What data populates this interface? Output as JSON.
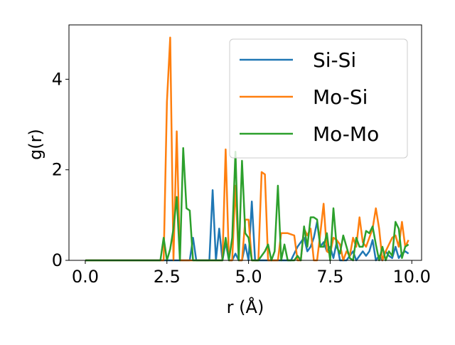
{
  "chart_data": {
    "type": "line",
    "title": "",
    "xlabel": "r (Å)",
    "ylabel": "g(r)",
    "xlim": [
      -0.5,
      10.3
    ],
    "ylim": [
      0,
      5.2
    ],
    "xticks": [
      0.0,
      2.5,
      5.0,
      7.5,
      10.0
    ],
    "xtick_labels": [
      "0.0",
      "2.5",
      "5.0",
      "7.5",
      "10.0"
    ],
    "yticks": [
      0,
      2,
      4
    ],
    "ytick_labels": [
      "0",
      "2",
      "4"
    ],
    "grid": false,
    "legend_position": "top-right",
    "series": [
      {
        "name": "Si-Si",
        "color": "#1f77b4",
        "x": [
          0.0,
          2.2,
          3.1,
          3.2,
          3.3,
          3.4,
          3.6,
          3.8,
          3.9,
          4.0,
          4.1,
          4.2,
          4.3,
          4.4,
          4.5,
          4.6,
          4.7,
          4.8,
          4.9,
          5.0,
          5.1,
          5.2,
          5.4,
          5.6,
          5.8,
          6.0,
          6.3,
          6.5,
          6.7,
          6.8,
          6.9,
          7.0,
          7.1,
          7.2,
          7.3,
          7.4,
          7.5,
          7.6,
          7.7,
          7.8,
          7.9,
          8.0,
          8.1,
          8.2,
          8.3,
          8.4,
          8.5,
          8.6,
          8.7,
          8.8,
          8.9,
          9.0,
          9.1,
          9.2,
          9.3,
          9.4,
          9.5,
          9.6,
          9.7,
          9.8,
          9.9
        ],
        "y": [
          0.0,
          0.0,
          0.0,
          0.0,
          0.5,
          0.0,
          0.0,
          0.0,
          1.55,
          0.0,
          0.7,
          0.0,
          0.4,
          0.0,
          0.0,
          0.15,
          0.0,
          0.0,
          0.35,
          0.0,
          1.3,
          0.0,
          0.0,
          0.0,
          0.0,
          0.0,
          0.0,
          0.3,
          0.5,
          0.2,
          0.3,
          0.5,
          0.85,
          0.3,
          0.4,
          0.2,
          0.3,
          0.05,
          0.4,
          0.0,
          0.0,
          0.0,
          0.1,
          0.2,
          0.0,
          0.1,
          0.2,
          0.1,
          0.2,
          0.45,
          0.0,
          0.1,
          0.0,
          0.2,
          0.1,
          0.05,
          0.3,
          0.05,
          0.15,
          0.2,
          0.15
        ]
      },
      {
        "name": "Mo-Si",
        "color": "#ff7f0e",
        "x": [
          0.0,
          2.3,
          2.4,
          2.5,
          2.6,
          2.7,
          2.8,
          2.9,
          3.0,
          3.2,
          3.5,
          3.8,
          4.0,
          4.2,
          4.3,
          4.4,
          4.5,
          4.6,
          4.7,
          4.8,
          4.9,
          5.0,
          5.1,
          5.2,
          5.3,
          5.4,
          5.5,
          5.6,
          5.7,
          5.8,
          5.9,
          6.0,
          6.2,
          6.4,
          6.5,
          6.6,
          6.7,
          6.8,
          6.9,
          7.0,
          7.1,
          7.2,
          7.3,
          7.4,
          7.5,
          7.6,
          7.7,
          7.8,
          7.9,
          8.0,
          8.1,
          8.2,
          8.3,
          8.4,
          8.5,
          8.6,
          8.7,
          8.8,
          8.9,
          9.0,
          9.1,
          9.2,
          9.3,
          9.4,
          9.5,
          9.6,
          9.7,
          9.8,
          9.9
        ],
        "y": [
          0.0,
          0.0,
          0.0,
          3.5,
          4.92,
          0.0,
          2.85,
          0.0,
          0.0,
          0.0,
          0.0,
          0.0,
          0.0,
          0.0,
          2.45,
          0.0,
          0.0,
          1.65,
          0.0,
          0.0,
          0.9,
          0.9,
          0.0,
          0.0,
          0.0,
          1.95,
          1.9,
          0.0,
          0.0,
          0.0,
          0.0,
          0.6,
          0.6,
          0.55,
          0.0,
          0.0,
          0.7,
          0.55,
          0.7,
          0.0,
          0.0,
          0.6,
          1.25,
          0.2,
          0.15,
          0.5,
          0.45,
          0.35,
          0.0,
          0.2,
          0.1,
          0.5,
          0.3,
          0.95,
          0.4,
          0.3,
          0.5,
          0.7,
          1.15,
          0.7,
          0.0,
          0.2,
          0.35,
          0.5,
          0.55,
          0.3,
          0.85,
          0.3,
          0.45
        ]
      },
      {
        "name": "Mo-Mo",
        "color": "#2ca02c",
        "x": [
          0.0,
          2.3,
          2.4,
          2.5,
          2.6,
          2.7,
          2.8,
          2.9,
          3.0,
          3.1,
          3.2,
          3.3,
          3.5,
          3.8,
          4.1,
          4.2,
          4.3,
          4.4,
          4.5,
          4.6,
          4.7,
          4.8,
          4.9,
          5.0,
          5.1,
          5.2,
          5.3,
          5.4,
          5.5,
          5.6,
          5.7,
          5.8,
          5.9,
          6.0,
          6.1,
          6.2,
          6.4,
          6.5,
          6.6,
          6.7,
          6.8,
          6.9,
          7.0,
          7.1,
          7.2,
          7.3,
          7.4,
          7.5,
          7.6,
          7.7,
          7.8,
          7.9,
          8.0,
          8.1,
          8.2,
          8.3,
          8.4,
          8.5,
          8.6,
          8.7,
          8.8,
          8.9,
          9.0,
          9.1,
          9.2,
          9.3,
          9.4,
          9.5,
          9.6,
          9.7,
          9.8,
          9.9
        ],
        "y": [
          0.0,
          0.0,
          0.5,
          0.0,
          0.25,
          0.7,
          1.4,
          0.0,
          2.48,
          1.15,
          1.1,
          0.0,
          0.0,
          0.0,
          0.0,
          0.0,
          0.5,
          0.0,
          0.5,
          2.4,
          0.0,
          2.2,
          0.6,
          0.5,
          0.0,
          0.0,
          0.0,
          0.1,
          0.2,
          0.35,
          0.0,
          0.2,
          1.65,
          0.0,
          0.35,
          0.0,
          0.0,
          0.1,
          0.0,
          0.75,
          0.3,
          0.95,
          0.95,
          0.9,
          0.3,
          0.3,
          0.6,
          0.0,
          1.15,
          0.3,
          0.15,
          0.55,
          0.3,
          0.05,
          0.0,
          0.5,
          0.3,
          0.3,
          0.65,
          0.6,
          0.75,
          0.35,
          0.0,
          0.3,
          0.0,
          0.2,
          0.1,
          0.85,
          0.7,
          0.05,
          0.3,
          0.35
        ]
      }
    ]
  }
}
